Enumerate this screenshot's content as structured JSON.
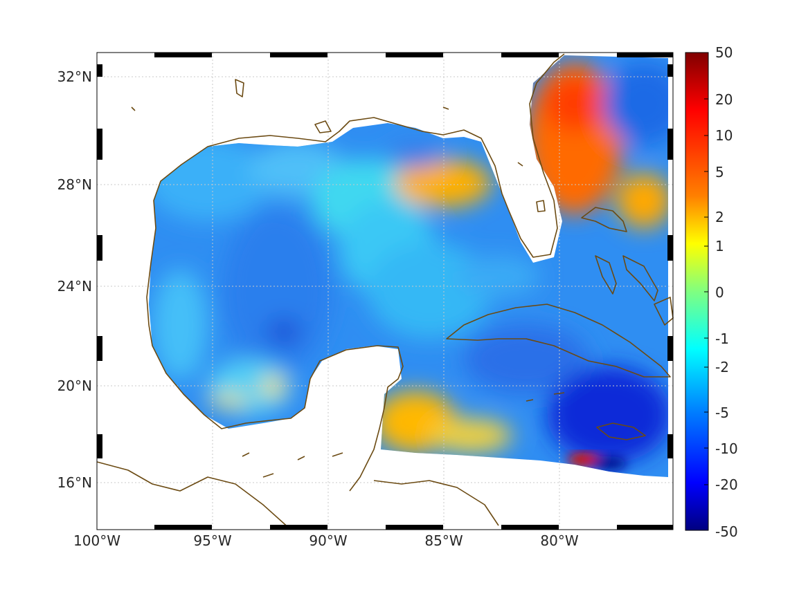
{
  "map": {
    "x_ticks": [
      "100°W",
      "95°W",
      "90°W",
      "85°W",
      "80°W"
    ],
    "y_ticks": [
      "32°N",
      "28°N",
      "24°N",
      "20°N",
      "16°N"
    ],
    "grid": true,
    "frame_style": "alternating black/white lat-lon border"
  },
  "colorbar": {
    "tick_labels": [
      "50",
      "20",
      "10",
      "5",
      "2",
      "1",
      "0",
      "-1",
      "-2",
      "-5",
      "-10",
      "-20",
      "-50"
    ],
    "colormap": "jet",
    "colors": [
      "#800000",
      "#ff0000",
      "#ff8000",
      "#ffff00",
      "#80ff80",
      "#00ffff",
      "#0080ff",
      "#0000ff",
      "#000080"
    ]
  },
  "colors": {
    "coastline": "#6b4a12",
    "land": "#ffffff",
    "grid": "#c8c8c8"
  }
}
